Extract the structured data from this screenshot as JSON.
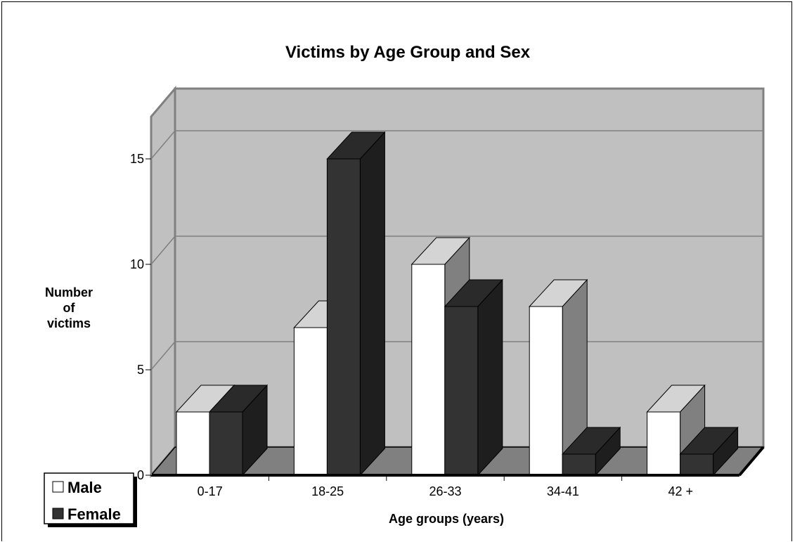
{
  "chart_data": {
    "type": "bar",
    "title": "Victims by Age Group and Sex",
    "xlabel": "Age groups (years)",
    "ylabel_lines": [
      "Number",
      "of",
      "victims"
    ],
    "categories": [
      "0-17",
      "18-25",
      "26-33",
      "34-41",
      "42 +"
    ],
    "series": [
      {
        "name": "Male",
        "values": [
          3,
          7,
          10,
          8,
          3
        ]
      },
      {
        "name": "Female",
        "values": [
          3,
          15,
          8,
          1,
          1
        ]
      }
    ],
    "ylim": [
      0,
      17
    ],
    "yticks": [
      0,
      5,
      10,
      15
    ],
    "grid": true,
    "three_d": true,
    "legend_position": "bottom-left"
  },
  "colors": {
    "male_front": "#ffffff",
    "male_top": "#d4d4d4",
    "male_side": "#808080",
    "female_front": "#333333",
    "female_top": "#2a2a2a",
    "female_side": "#1e1e1e",
    "back_wall": "#c0c0c0",
    "side_wall": "#c0c0c0",
    "floor": "#808080",
    "grid": "#808080"
  }
}
